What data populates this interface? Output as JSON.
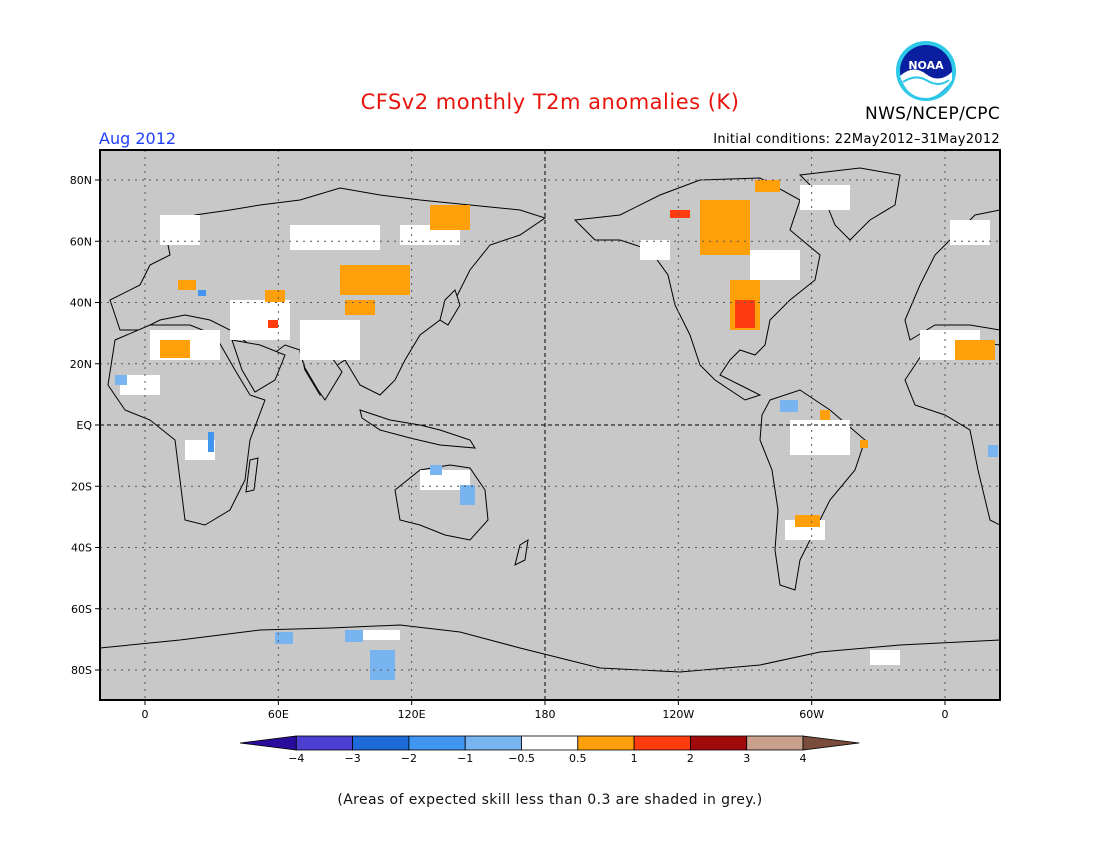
{
  "header": {
    "title": "CFSv2 monthly T2m anomalies (K)",
    "month": "Aug 2012",
    "init_conditions": "Initial conditions: 22May2012–31May2012",
    "agency": "NWS/NCEP/CPC",
    "logo_text": "NOAA"
  },
  "map": {
    "projection": "cylindrical equidistant",
    "lon_ticks": [
      "0",
      "60E",
      "120E",
      "180",
      "120W",
      "60W",
      "0"
    ],
    "lat_ticks": [
      "80N",
      "60N",
      "40N",
      "20N",
      "EQ",
      "20S",
      "40S",
      "60S",
      "80S"
    ],
    "background_color": "#c8c8c8",
    "land_neutral_color": "#ffffff"
  },
  "colorbar": {
    "labels": [
      "−4",
      "−3",
      "−2",
      "−1",
      "−0.5",
      "0.5",
      "1",
      "2",
      "3",
      "4"
    ],
    "colors": [
      "#2a0c9c",
      "#4b3ed0",
      "#1e6ad8",
      "#4096f0",
      "#78b4f0",
      "#ffffff",
      "#ffa00a",
      "#ff3c10",
      "#a00a0a",
      "#c8a08c",
      "#7a4c3c"
    ]
  },
  "footnote": "(Areas of expected skill less than 0.3 are shaded in grey.)"
}
